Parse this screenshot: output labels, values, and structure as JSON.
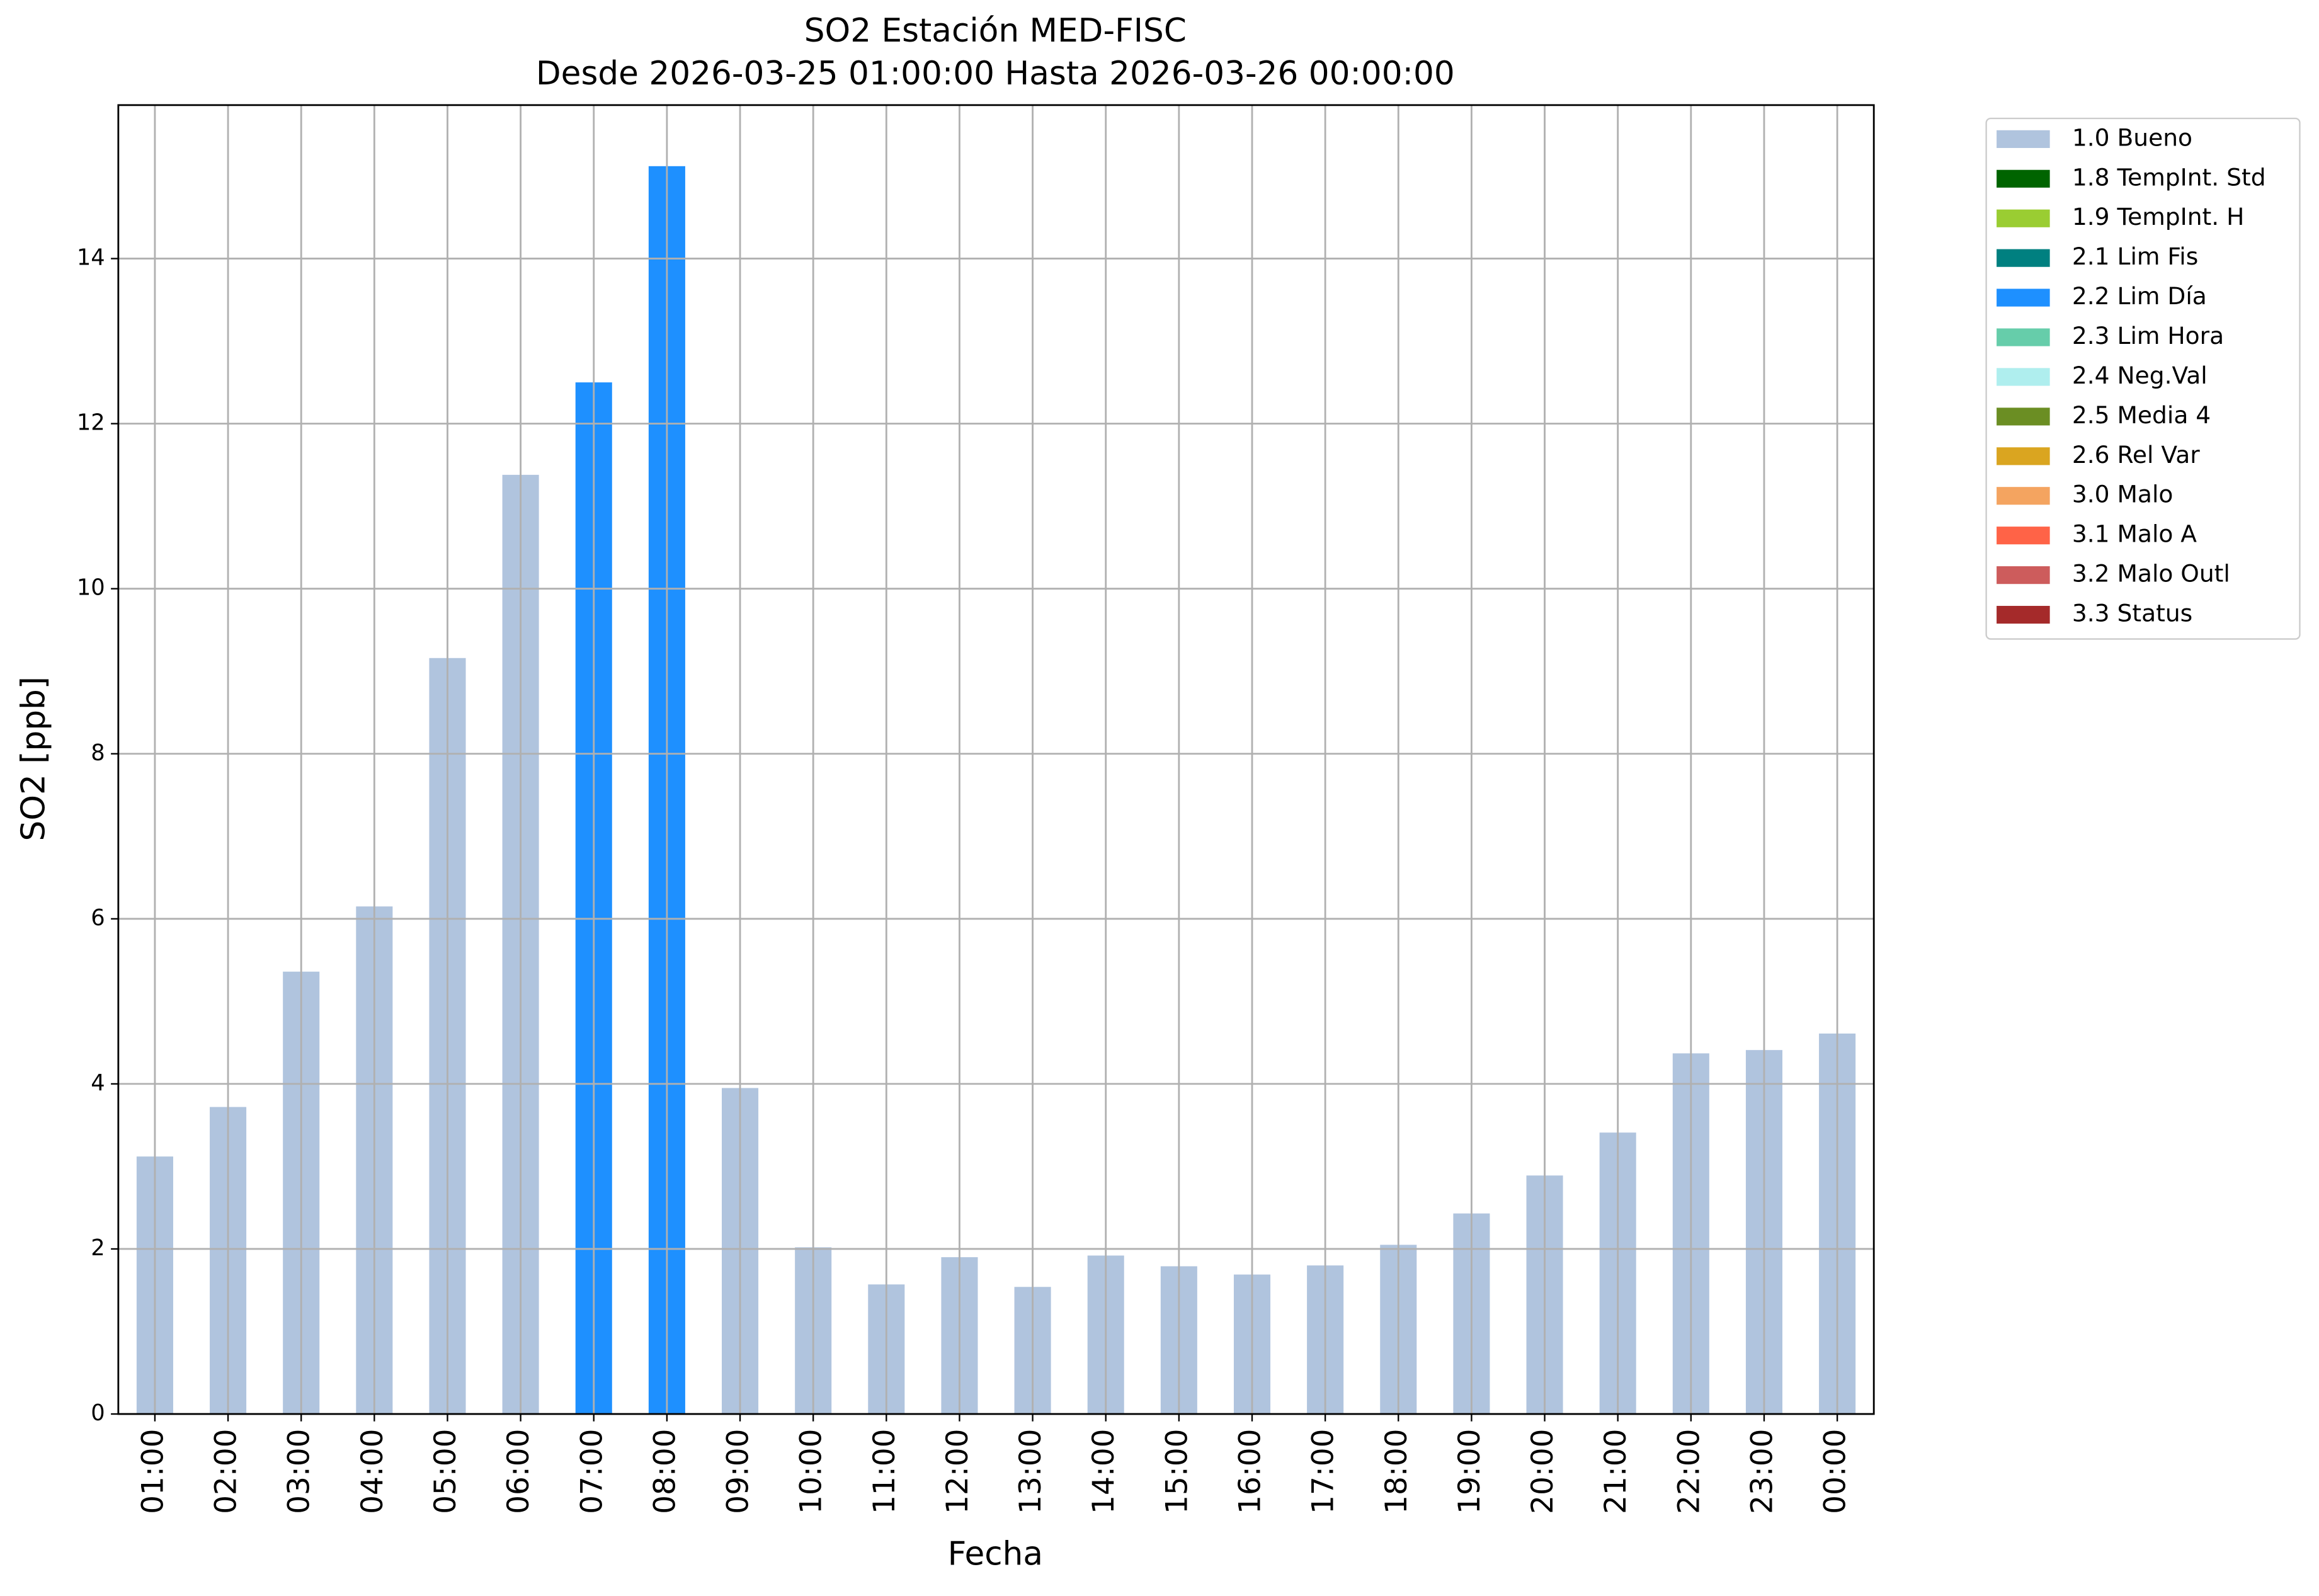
{
  "chart_data": {
    "type": "bar",
    "title": "SO2 Estación MED-FISC",
    "subtitle": "Desde 2026-03-25 01:00:00 Hasta 2026-03-26 00:00:00",
    "xlabel": "Fecha",
    "ylabel": "SO2 [ppb]",
    "categories": [
      "01:00",
      "02:00",
      "03:00",
      "04:00",
      "05:00",
      "06:00",
      "07:00",
      "08:00",
      "09:00",
      "10:00",
      "11:00",
      "12:00",
      "13:00",
      "14:00",
      "15:00",
      "16:00",
      "17:00",
      "18:00",
      "19:00",
      "20:00",
      "21:00",
      "22:00",
      "23:00",
      "00:00"
    ],
    "series": [
      {
        "name": "1.0 Bueno",
        "color": "#b0c4de",
        "values": [
          3.12,
          3.72,
          5.36,
          6.15,
          9.16,
          11.38,
          null,
          null,
          3.95,
          2.02,
          1.57,
          1.9,
          1.54,
          1.92,
          1.79,
          1.69,
          1.8,
          2.05,
          2.43,
          2.89,
          3.41,
          4.37,
          4.41,
          4.61
        ]
      },
      {
        "name": "1.8 TempInt. Std",
        "color": "#006400",
        "values": [
          null,
          null,
          null,
          null,
          null,
          null,
          null,
          null,
          null,
          null,
          null,
          null,
          null,
          null,
          null,
          null,
          null,
          null,
          null,
          null,
          null,
          null,
          null,
          null
        ]
      },
      {
        "name": "1.9 TempInt. H",
        "color": "#9acd32",
        "values": [
          null,
          null,
          null,
          null,
          null,
          null,
          null,
          null,
          null,
          null,
          null,
          null,
          null,
          null,
          null,
          null,
          null,
          null,
          null,
          null,
          null,
          null,
          null,
          null
        ]
      },
      {
        "name": "2.1 Lim Fis",
        "color": "#008080",
        "values": [
          null,
          null,
          null,
          null,
          null,
          null,
          null,
          null,
          null,
          null,
          null,
          null,
          null,
          null,
          null,
          null,
          null,
          null,
          null,
          null,
          null,
          null,
          null,
          null
        ]
      },
      {
        "name": "2.2 Lim Día",
        "color": "#1e90ff",
        "values": [
          null,
          null,
          null,
          null,
          null,
          null,
          12.5,
          15.12,
          null,
          null,
          null,
          null,
          null,
          null,
          null,
          null,
          null,
          null,
          null,
          null,
          null,
          null,
          null,
          null
        ]
      },
      {
        "name": "2.3 Lim Hora",
        "color": "#66cdaa",
        "values": [
          null,
          null,
          null,
          null,
          null,
          null,
          null,
          null,
          null,
          null,
          null,
          null,
          null,
          null,
          null,
          null,
          null,
          null,
          null,
          null,
          null,
          null,
          null,
          null
        ]
      },
      {
        "name": "2.4 Neg.Val",
        "color": "#afeeee",
        "values": [
          null,
          null,
          null,
          null,
          null,
          null,
          null,
          null,
          null,
          null,
          null,
          null,
          null,
          null,
          null,
          null,
          null,
          null,
          null,
          null,
          null,
          null,
          null,
          null
        ]
      },
      {
        "name": "2.5 Media 4",
        "color": "#6b8e23",
        "values": [
          null,
          null,
          null,
          null,
          null,
          null,
          null,
          null,
          null,
          null,
          null,
          null,
          null,
          null,
          null,
          null,
          null,
          null,
          null,
          null,
          null,
          null,
          null,
          null
        ]
      },
      {
        "name": "2.6 Rel Var",
        "color": "#daa520",
        "values": [
          null,
          null,
          null,
          null,
          null,
          null,
          null,
          null,
          null,
          null,
          null,
          null,
          null,
          null,
          null,
          null,
          null,
          null,
          null,
          null,
          null,
          null,
          null,
          null
        ]
      },
      {
        "name": "3.0 Malo",
        "color": "#f4a460",
        "values": [
          null,
          null,
          null,
          null,
          null,
          null,
          null,
          null,
          null,
          null,
          null,
          null,
          null,
          null,
          null,
          null,
          null,
          null,
          null,
          null,
          null,
          null,
          null,
          null
        ]
      },
      {
        "name": "3.1 Malo A",
        "color": "#ff6347",
        "values": [
          null,
          null,
          null,
          null,
          null,
          null,
          null,
          null,
          null,
          null,
          null,
          null,
          null,
          null,
          null,
          null,
          null,
          null,
          null,
          null,
          null,
          null,
          null,
          null
        ]
      },
      {
        "name": "3.2 Malo Outl",
        "color": "#cd5c5c",
        "values": [
          null,
          null,
          null,
          null,
          null,
          null,
          null,
          null,
          null,
          null,
          null,
          null,
          null,
          null,
          null,
          null,
          null,
          null,
          null,
          null,
          null,
          null,
          null,
          null
        ]
      },
      {
        "name": "3.3 Status",
        "color": "#a52a2a",
        "values": [
          null,
          null,
          null,
          null,
          null,
          null,
          null,
          null,
          null,
          null,
          null,
          null,
          null,
          null,
          null,
          null,
          null,
          null,
          null,
          null,
          null,
          null,
          null,
          null
        ]
      }
    ],
    "ylim": [
      0,
      15.86
    ],
    "yticks": [
      0,
      2,
      4,
      6,
      8,
      10,
      12,
      14
    ],
    "grid": true,
    "legend": "outside-upper-right",
    "stacked": true
  }
}
